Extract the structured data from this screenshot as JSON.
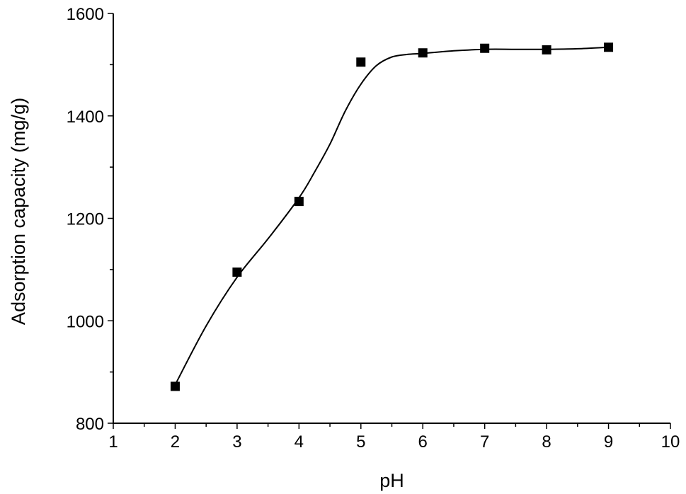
{
  "chart_data": {
    "type": "scatter",
    "title": "",
    "xlabel": "pH",
    "ylabel": "Adsorption capacity (mg/g)",
    "xlim": [
      1,
      10
    ],
    "ylim": [
      800,
      1600
    ],
    "x_major_ticks": [
      1,
      2,
      3,
      4,
      5,
      6,
      7,
      8,
      9,
      10
    ],
    "x_tick_labels": [
      "1",
      "2",
      "3",
      "4",
      "5",
      "6",
      "7",
      "8",
      "9",
      "10"
    ],
    "y_major_ticks": [
      800,
      1000,
      1200,
      1400,
      1600
    ],
    "y_tick_labels": [
      "800",
      "1000",
      "1200",
      "1400",
      "1600"
    ],
    "grid": false,
    "legend": "none",
    "series": [
      {
        "marker": "square",
        "color": "#000000",
        "x": [
          2,
          3,
          4,
          5,
          6,
          7,
          8,
          9
        ],
        "y": [
          872,
          1095,
          1233,
          1505,
          1523,
          1532,
          1529,
          1534
        ]
      }
    ],
    "fit_curve": {
      "style": "smooth-line",
      "color": "#000000",
      "x": [
        2,
        2.5,
        3,
        3.5,
        4,
        4.25,
        4.5,
        4.75,
        5,
        5.25,
        5.5,
        5.75,
        6,
        6.5,
        7,
        7.5,
        8,
        8.5,
        9
      ],
      "y": [
        875,
        990,
        1085,
        1160,
        1240,
        1290,
        1345,
        1410,
        1462,
        1498,
        1515,
        1520,
        1522,
        1527,
        1530,
        1530,
        1530,
        1531,
        1534
      ]
    }
  }
}
